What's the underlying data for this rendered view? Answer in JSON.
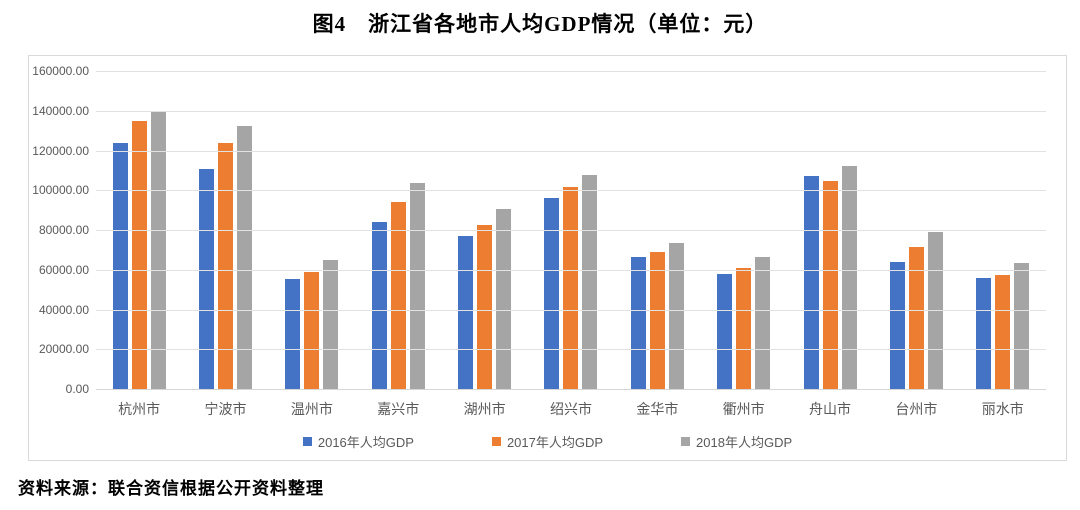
{
  "title": "图4　浙江省各地市人均GDP情况（单位：元）",
  "source_note": "资料来源：联合资信根据公开资料整理",
  "colors": {
    "series_2016": "#4472C4",
    "series_2017": "#ED7D31",
    "series_2018": "#A5A5A5",
    "gridline": "#E2E2E2",
    "axis_text": "#595959",
    "chart_border": "#D9D9D9",
    "background": "#FFFFFF"
  },
  "chart_data": {
    "type": "bar",
    "title": "图4　浙江省各地市人均GDP情况（单位：元）",
    "categories": [
      "杭州市",
      "宁波市",
      "温州市",
      "嘉兴市",
      "湖州市",
      "绍兴市",
      "金华市",
      "衢州市",
      "舟山市",
      "台州市",
      "丽水市"
    ],
    "series": [
      {
        "name": "2016年人均GDP",
        "color": "#4472C4",
        "values": [
          124000,
          110500,
          55500,
          84000,
          77000,
          96000,
          66500,
          58000,
          107000,
          64000,
          56000
        ]
      },
      {
        "name": "2017年人均GDP",
        "color": "#ED7D31",
        "values": [
          135000,
          124000,
          59000,
          94000,
          82500,
          101500,
          69000,
          61000,
          104500,
          71500,
          57500
        ]
      },
      {
        "name": "2018年人均GDP",
        "color": "#A5A5A5",
        "values": [
          140000,
          132500,
          65000,
          103500,
          90500,
          107500,
          73500,
          66500,
          112000,
          79000,
          63500
        ]
      }
    ],
    "xlabel": "",
    "ylabel": "",
    "ylim": [
      0,
      160000
    ],
    "ytick_step": 20000,
    "ytick_labels_top_down": [
      "160000.00",
      "140000.00",
      "120000.00",
      "100000.00",
      "80000.00",
      "60000.00",
      "40000.00",
      "20000.00",
      "0.00"
    ],
    "grid": true,
    "legend_position": "bottom"
  }
}
